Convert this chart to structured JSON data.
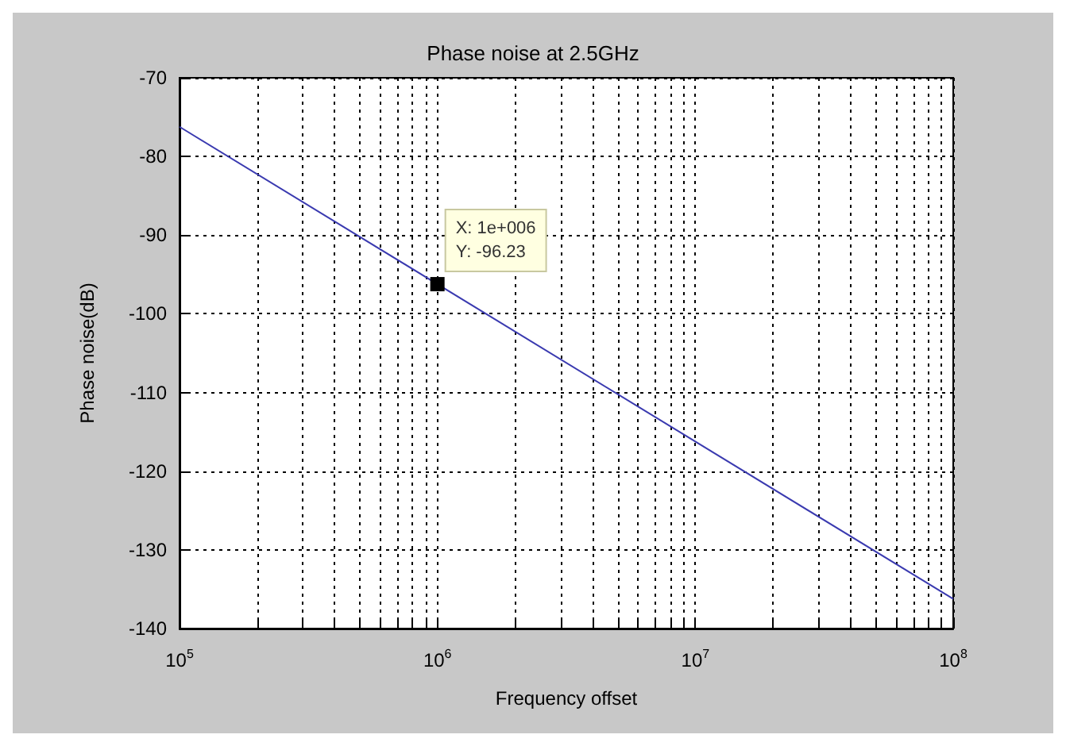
{
  "chart_data": {
    "type": "line",
    "title": "Phase noise at 2.5GHz",
    "xlabel": "Frequency offset",
    "ylabel": "Phase noise(dB)",
    "x": [
      100000,
      100000000
    ],
    "series": [
      {
        "color": "#3a3ab0",
        "values": [
          -76.23,
          -136.23
        ]
      }
    ],
    "log": "x",
    "xlim": [
      100000,
      100000000
    ],
    "xticks": [
      {
        "value": 100000,
        "label": "10$^{5}$"
      },
      {
        "value": 200000,
        "label": null
      },
      {
        "value": 300000,
        "label": null
      },
      {
        "value": 400000,
        "label": null
      },
      {
        "value": 500000,
        "label": null
      },
      {
        "value": 600000,
        "label": null
      },
      {
        "value": 700000,
        "label": null
      },
      {
        "value": 800000,
        "label": null
      },
      {
        "value": 900000,
        "label": null
      },
      {
        "value": 1000000,
        "label": "10$^{6}$"
      },
      {
        "value": 2000000,
        "label": null
      },
      {
        "value": 3000000,
        "label": null
      },
      {
        "value": 4000000,
        "label": null
      },
      {
        "value": 5000000,
        "label": null
      },
      {
        "value": 6000000,
        "label": null
      },
      {
        "value": 7000000,
        "label": null
      },
      {
        "value": 8000000,
        "label": null
      },
      {
        "value": 9000000,
        "label": null
      },
      {
        "value": 10000000,
        "label": "10$^{7}$"
      },
      {
        "value": 20000000,
        "label": null
      },
      {
        "value": 30000000,
        "label": null
      },
      {
        "value": 40000000,
        "label": null
      },
      {
        "value": 50000000,
        "label": null
      },
      {
        "value": 60000000,
        "label": null
      },
      {
        "value": 70000000,
        "label": null
      },
      {
        "value": 80000000,
        "label": null
      },
      {
        "value": 90000000,
        "label": null
      },
      {
        "value": 100000000,
        "label": "10$^{8}$"
      }
    ],
    "ylim": [
      -140,
      -70
    ],
    "yticks": [
      -140,
      -130,
      -120,
      -110,
      -100,
      -90,
      -80,
      -70
    ],
    "grid": true,
    "marker": "none",
    "annotations": [
      {
        "text": "X: 1e+006\nY: -96.23",
        "x": 1000000,
        "y": -96.23
      }
    ]
  }
}
